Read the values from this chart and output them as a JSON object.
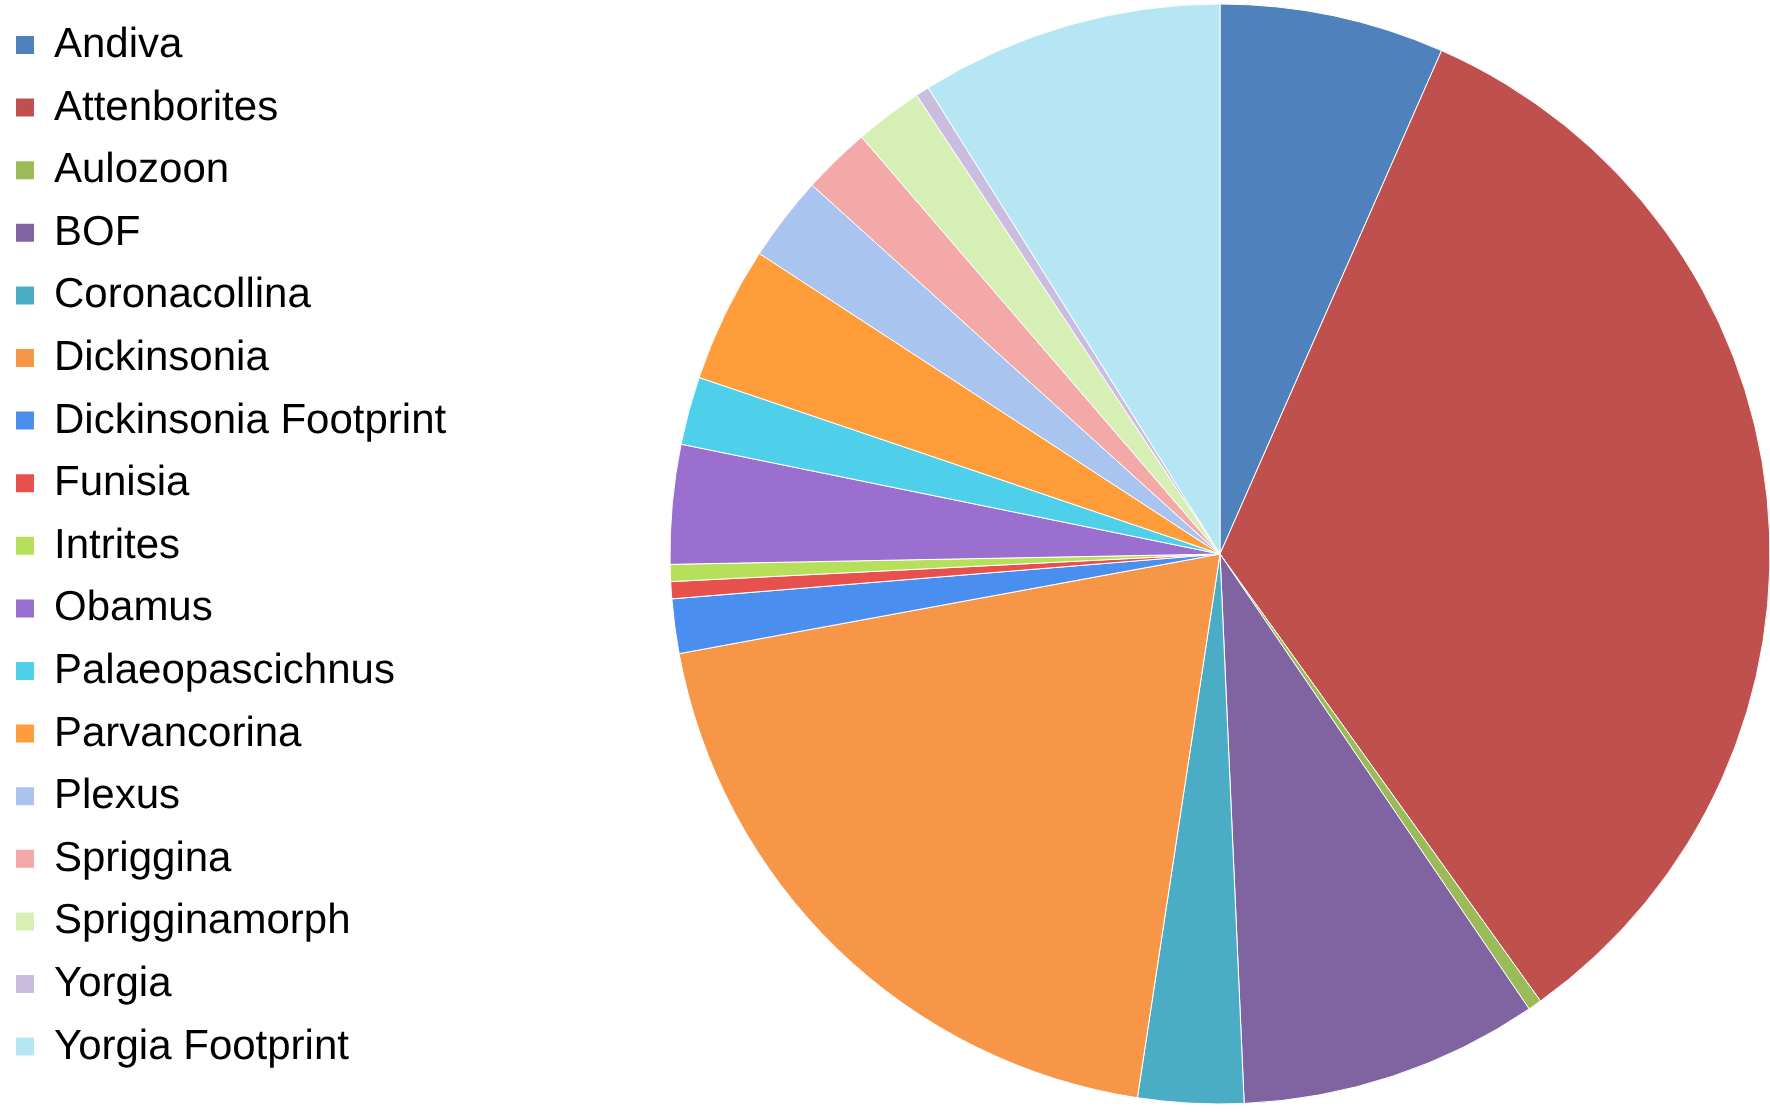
{
  "chart_data": {
    "type": "pie",
    "legend": "top left",
    "categories": [
      "Andiva",
      "Attenborites",
      "Aulozoon",
      "BOF",
      "Coronacollina",
      "Dickinsonia",
      "Dickinsonia Footprint",
      "Funisia",
      "Intrites",
      "Obamus",
      "Palaeopascichnus",
      "Parvancorina",
      "Plexus",
      "Spriggina",
      "Sprigginamorph",
      "Yorgia",
      "Yorgia Footprint"
    ],
    "values": [
      6.6,
      33.5,
      0.4,
      8.8,
      3.1,
      19.7,
      1.6,
      0.5,
      0.5,
      3.5,
      2,
      4,
      2.5,
      2,
      2,
      0.4,
      8.9
    ],
    "colors": [
      "#4f81bd",
      "#c0504d",
      "#9bbb59",
      "#8064a2",
      "#4bacc6",
      "#f79646",
      "#4a8ef0",
      "#e8504d",
      "#b6e05a",
      "#9a6fcf",
      "#4fd0ea",
      "#ff9d3a",
      "#a9c4ef",
      "#f2a9a8",
      "#d6efb5",
      "#cbbde0",
      "#b6e6f3"
    ]
  }
}
